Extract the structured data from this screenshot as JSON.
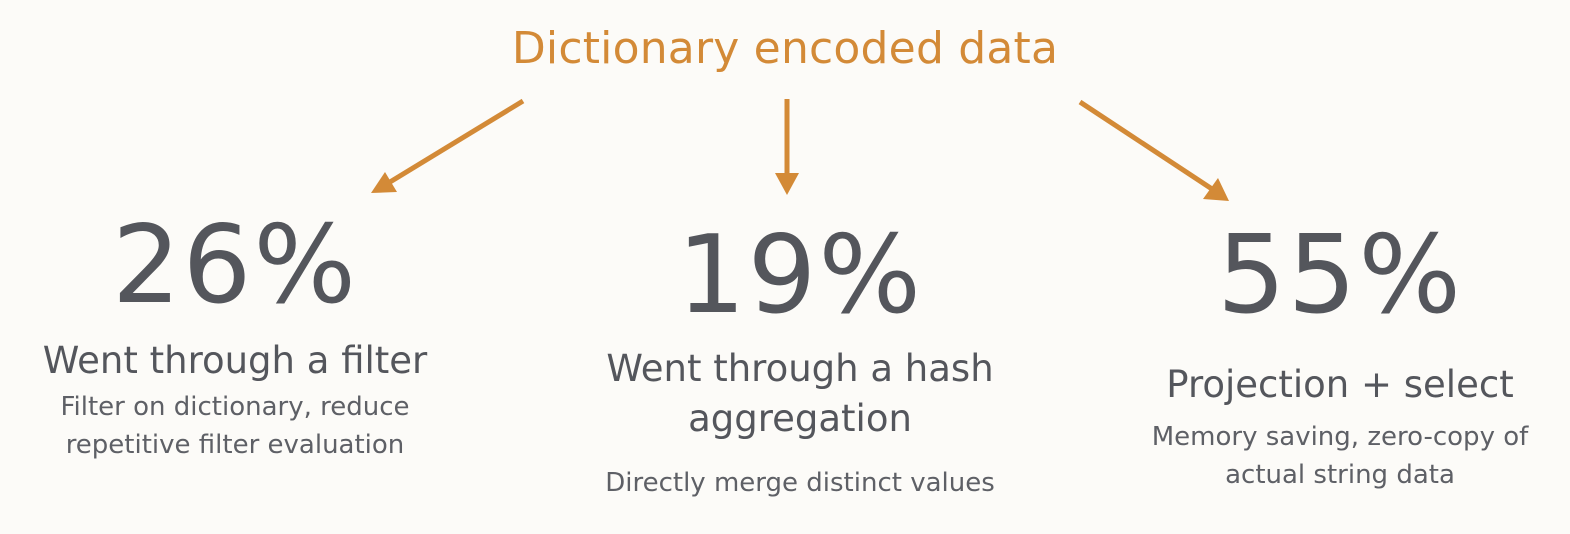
{
  "title": "Dictionary encoded data",
  "accent_color": "#d38a37",
  "text_color": "#54565c",
  "stats": [
    {
      "percent": "26%",
      "value": 26,
      "heading": "Went through a filter",
      "description": "Filter on dictionary, reduce repetitive filter evaluation"
    },
    {
      "percent": "19%",
      "value": 19,
      "heading": "Went through a hash aggregation",
      "description": "Directly merge distinct values"
    },
    {
      "percent": "55%",
      "value": 55,
      "heading": "Projection + select",
      "description": "Memory saving, zero-copy of actual string data"
    }
  ]
}
